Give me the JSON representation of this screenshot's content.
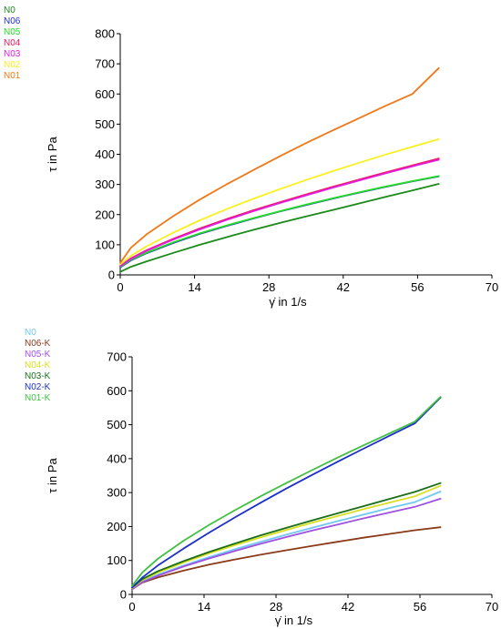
{
  "chart_data": [
    {
      "type": "line",
      "xlabel": "γ̇ in 1/s",
      "ylabel": "τ in Pa",
      "xlim": [
        0,
        70
      ],
      "ylim": [
        0,
        800
      ],
      "xticks": [
        0,
        14,
        28,
        42,
        56,
        70
      ],
      "yticks": [
        0,
        100,
        200,
        300,
        400,
        500,
        600,
        700,
        800
      ],
      "grid": false,
      "legend_position": "top-left outside",
      "x": [
        0,
        2,
        5,
        10,
        15,
        20,
        25,
        30,
        35,
        40,
        45,
        50,
        55,
        60
      ],
      "series": [
        {
          "name": "N0",
          "color": "#1a8a1a",
          "values": [
            10,
            27,
            45,
            73,
            100,
            125,
            149,
            172,
            194,
            215,
            237,
            259,
            280,
            302
          ]
        },
        {
          "name": "N06",
          "color": "#1f2fd0",
          "values": [
            25,
            48,
            72,
            106,
            136,
            162,
            187,
            210,
            232,
            253,
            273,
            292,
            310,
            327
          ]
        },
        {
          "name": "N05",
          "color": "#22dd22",
          "values": [
            27,
            50,
            74,
            108,
            138,
            164,
            188,
            211,
            233,
            254,
            274,
            293,
            311,
            328
          ]
        },
        {
          "name": "N04",
          "color": "#f0185a",
          "values": [
            30,
            55,
            82,
            120,
            154,
            185,
            214,
            241,
            267,
            292,
            316,
            340,
            363,
            386
          ]
        },
        {
          "name": "N03",
          "color": "#e01ee0",
          "values": [
            29,
            53,
            80,
            117,
            151,
            182,
            211,
            238,
            264,
            289,
            313,
            337,
            360,
            382
          ]
        },
        {
          "name": "N02",
          "color": "#f8f020",
          "values": [
            35,
            63,
            95,
            140,
            181,
            218,
            252,
            284,
            315,
            344,
            372,
            399,
            425,
            450
          ]
        },
        {
          "name": "N01",
          "color": "#f07818",
          "values": [
            40,
            90,
            135,
            195,
            250,
            300,
            347,
            393,
            437,
            479,
            520,
            561,
            600,
            686
          ]
        }
      ]
    },
    {
      "type": "line",
      "xlabel": "γ̇ in 1/s",
      "ylabel": "τ in Pa",
      "xlim": [
        0,
        70
      ],
      "ylim": [
        0,
        700
      ],
      "xticks": [
        0,
        14,
        28,
        42,
        56,
        70
      ],
      "yticks": [
        0,
        100,
        200,
        300,
        400,
        500,
        600,
        700
      ],
      "grid": false,
      "legend_position": "top-left outside",
      "x": [
        0,
        2,
        5,
        10,
        15,
        20,
        25,
        30,
        35,
        40,
        45,
        50,
        55,
        60
      ],
      "series": [
        {
          "name": "N0",
          "color": "#70c8f0",
          "values": [
            15,
            38,
            58,
            85,
            110,
            133,
            155,
            176,
            196,
            216,
            235,
            254,
            272,
            303
          ]
        },
        {
          "name": "N06-K",
          "color": "#8b3a1a",
          "values": [
            15,
            35,
            50,
            70,
            88,
            103,
            117,
            130,
            143,
            155,
            167,
            178,
            189,
            198
          ]
        },
        {
          "name": "N05-K",
          "color": "#a050e0",
          "values": [
            15,
            36,
            55,
            82,
            106,
            128,
            149,
            169,
            188,
            206,
            224,
            241,
            258,
            282
          ]
        },
        {
          "name": "N04-K",
          "color": "#d8e020",
          "values": [
            18,
            42,
            64,
            94,
            121,
            145,
            168,
            190,
            211,
            231,
            251,
            270,
            289,
            320
          ]
        },
        {
          "name": "N03-K",
          "color": "#1a6e1a",
          "values": [
            20,
            45,
            68,
            98,
            125,
            150,
            174,
            196,
            218,
            239,
            260,
            281,
            302,
            328
          ]
        },
        {
          "name": "N02-K",
          "color": "#1c2fc8",
          "values": [
            20,
            50,
            85,
            135,
            182,
            227,
            270,
            312,
            352,
            391,
            429,
            467,
            504,
            580
          ]
        },
        {
          "name": "N01-K",
          "color": "#40c040",
          "values": [
            25,
            65,
            105,
            158,
            205,
            248,
            289,
            328,
            366,
            403,
            439,
            474,
            509,
            582
          ]
        }
      ]
    }
  ]
}
